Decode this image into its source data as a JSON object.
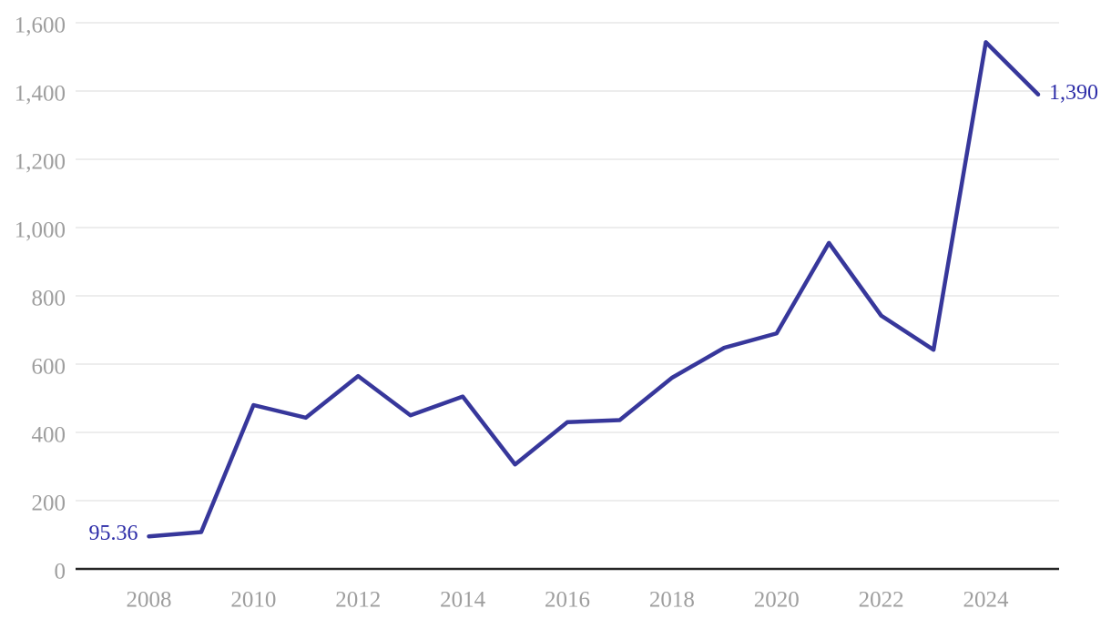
{
  "chart_data": {
    "type": "line",
    "x": [
      2008,
      2009,
      2010,
      2011,
      2012,
      2013,
      2014,
      2015,
      2016,
      2017,
      2018,
      2019,
      2020,
      2021,
      2022,
      2023,
      2024,
      2025
    ],
    "values": [
      95.36,
      108,
      480,
      443,
      565,
      450,
      505,
      306,
      430,
      436,
      560,
      648,
      690,
      955,
      742,
      642,
      1543,
      1390
    ],
    "title": "",
    "xlabel": "",
    "ylabel": "",
    "ylim": [
      0,
      1600
    ],
    "grid": "horizontal-only",
    "legend": "none",
    "yticks": [
      {
        "value": 0,
        "label": "0"
      },
      {
        "value": 200,
        "label": "200"
      },
      {
        "value": 400,
        "label": "400"
      },
      {
        "value": 600,
        "label": "600"
      },
      {
        "value": 800,
        "label": "800"
      },
      {
        "value": 1000,
        "label": "1,000"
      },
      {
        "value": 1200,
        "label": "1,200"
      },
      {
        "value": 1400,
        "label": "1,400"
      },
      {
        "value": 1600,
        "label": "1,600"
      }
    ],
    "xticks": [
      {
        "value": 2008,
        "label": "2008"
      },
      {
        "value": 2010,
        "label": "2010"
      },
      {
        "value": 2012,
        "label": "2012"
      },
      {
        "value": 2014,
        "label": "2014"
      },
      {
        "value": 2016,
        "label": "2016"
      },
      {
        "value": 2018,
        "label": "2018"
      },
      {
        "value": 2020,
        "label": "2020"
      },
      {
        "value": 2022,
        "label": "2022"
      },
      {
        "value": 2024,
        "label": "2024"
      }
    ],
    "first_point_label": "95.36",
    "last_point_label": "1,390",
    "colors": {
      "line": "#37379B",
      "point_labels": "#2D2DA8",
      "gridline": "#E7E7E7",
      "axis_line": "#262626",
      "tick_labels": "#9E9E9E",
      "background": "#FFFFFF"
    }
  }
}
